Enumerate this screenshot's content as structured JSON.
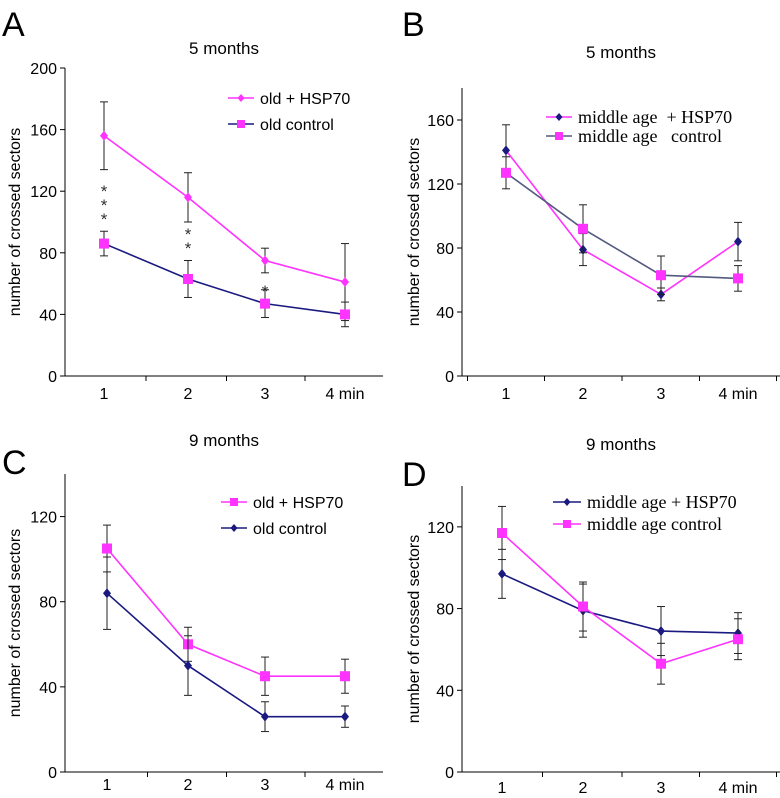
{
  "chart_data": [
    {
      "id": "A",
      "panel_label": "A",
      "type": "line",
      "title": "5 months",
      "xlabel": "",
      "ylabel": "number of crossed sectors",
      "categories": [
        "1",
        "2",
        "3",
        "4 min"
      ],
      "ylim": [
        0,
        200
      ],
      "yticks": [
        "0",
        "40",
        "80",
        "120",
        "160",
        "200"
      ],
      "legend_font": "sans",
      "legend_position": "top-right",
      "series": [
        {
          "name": "old + HSP70",
          "color": "#ff33ff",
          "line_color": "#ff33ff",
          "marker": "diamond",
          "marker_color": "#ff33ff",
          "values": [
            156,
            116,
            75,
            61
          ],
          "errors": [
            22,
            16,
            8,
            25
          ]
        },
        {
          "name": "old control",
          "color": "#1a1a80",
          "line_color": "#1a1a80",
          "marker": "square",
          "marker_color": "#ff33ff",
          "values": [
            86,
            63,
            47,
            40
          ],
          "errors": [
            8,
            12,
            9,
            8
          ]
        }
      ],
      "annotations": [
        {
          "category": 0,
          "text": [
            "*",
            "*",
            "*"
          ],
          "y": [
            122,
            113,
            104
          ]
        },
        {
          "category": 1,
          "text": [
            "*",
            "*"
          ],
          "y": [
            94,
            85
          ]
        },
        {
          "category": 2,
          "text": [
            "*"
          ],
          "y": [
            57
          ]
        }
      ]
    },
    {
      "id": "B",
      "panel_label": "B",
      "type": "line",
      "title": "5 months",
      "xlabel": "",
      "ylabel": "number of crossed sectors",
      "categories": [
        "1",
        "2",
        "3",
        "4 min"
      ],
      "ylim": [
        0,
        180
      ],
      "yticks": [
        "0",
        "40",
        "80",
        "120",
        "160"
      ],
      "legend_font": "serif",
      "legend_position": "top-right",
      "series": [
        {
          "name": "middle age  + HSP70",
          "color": "#ff33ff",
          "line_color": "#ff33ff",
          "marker": "diamond",
          "marker_color": "#1a1a80",
          "values": [
            141,
            79,
            51,
            84
          ],
          "errors": [
            16,
            10,
            4,
            12
          ]
        },
        {
          "name": "middle age   control",
          "color": "#555a80",
          "line_color": "#555a80",
          "marker": "square",
          "marker_color": "#ff33ff",
          "values": [
            127,
            92,
            63,
            61
          ],
          "errors": [
            10,
            15,
            12,
            8
          ]
        }
      ],
      "annotations": []
    },
    {
      "id": "C",
      "panel_label": "C",
      "type": "line",
      "title": "9 months",
      "xlabel": "",
      "ylabel": "number of crossed sectors",
      "categories": [
        "1",
        "2",
        "3",
        "4 min"
      ],
      "ylim": [
        0,
        140
      ],
      "yticks": [
        "0",
        "40",
        "80",
        "120"
      ],
      "legend_font": "sans",
      "legend_position": "top-right",
      "series": [
        {
          "name": "old + HSP70",
          "color": "#ff33ff",
          "line_color": "#ff33ff",
          "marker": "square",
          "marker_color": "#ff33ff",
          "values": [
            105,
            60,
            45,
            45
          ],
          "errors": [
            11,
            8,
            9,
            8
          ]
        },
        {
          "name": "old control",
          "color": "#1a1a80",
          "line_color": "#1a1a80",
          "marker": "diamond",
          "marker_color": "#1a1a80",
          "values": [
            84,
            50,
            26,
            26
          ],
          "errors": [
            17,
            14,
            7,
            5
          ]
        }
      ],
      "annotations": []
    },
    {
      "id": "D",
      "panel_label": "D",
      "type": "line",
      "title": "9 months",
      "xlabel": "",
      "ylabel": "number of crossed sectors",
      "categories": [
        "1",
        "2",
        "3",
        "4 min"
      ],
      "ylim": [
        0,
        140
      ],
      "yticks": [
        "0",
        "40",
        "80",
        "120"
      ],
      "legend_font": "serif",
      "legend_position": "top-right",
      "series": [
        {
          "name": "middle age + HSP70",
          "color": "#1a1a80",
          "line_color": "#1a1a80",
          "marker": "diamond",
          "marker_color": "#1a1a80",
          "values": [
            97,
            79,
            69,
            68
          ],
          "errors": [
            12,
            13,
            12,
            10
          ]
        },
        {
          "name": "middle age control",
          "color": "#ff33ff",
          "line_color": "#ff33ff",
          "marker": "square",
          "marker_color": "#ff33ff",
          "values": [
            117,
            81,
            53,
            65
          ],
          "errors": [
            13,
            12,
            10,
            10
          ]
        }
      ],
      "annotations": []
    }
  ]
}
